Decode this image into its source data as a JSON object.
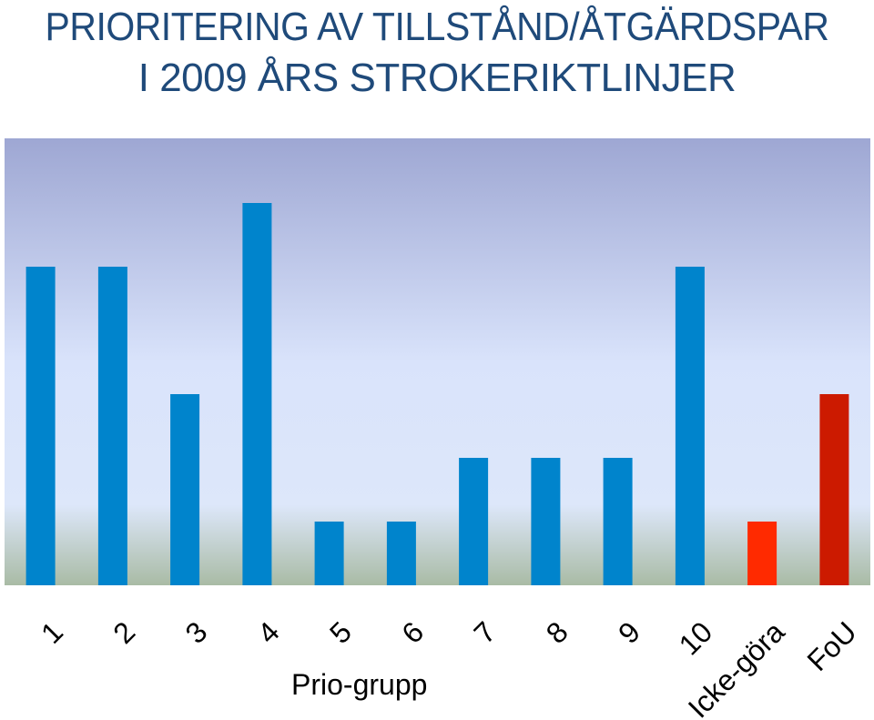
{
  "title_line1": "PRIORITERING AV TILLSTÅND/ÅTGÄRDSPAR",
  "title_line2": "I 2009 ÅRS STROKERIKTLINJER",
  "colors": {
    "title": "#1f4a7a",
    "bar_blue": "#0084cc",
    "bar_red_light": "#ff2a00",
    "bar_red_dark": "#cc1a00",
    "bg_top": "#9ea7d3",
    "bg_mid": "#d9e3fb",
    "bg_bottom": "#a9bba5"
  },
  "chart_data": {
    "type": "bar",
    "title": "PRIORITERING AV TILLSTÅND/ÅTGÄRDSPAR I 2009 ÅRS STROKERIKTLINJER",
    "xlabel": "Prio-grupp",
    "ylabel": "",
    "grid": false,
    "categories": [
      "1",
      "2",
      "3",
      "4",
      "5",
      "6",
      "7",
      "8",
      "9",
      "10",
      "Icke-göra",
      "FoU"
    ],
    "values": [
      5,
      5,
      3,
      6,
      1,
      1,
      2,
      2,
      2,
      5,
      1,
      3
    ],
    "bar_colors": [
      "#0084cc",
      "#0084cc",
      "#0084cc",
      "#0084cc",
      "#0084cc",
      "#0084cc",
      "#0084cc",
      "#0084cc",
      "#0084cc",
      "#0084cc",
      "#ff2a00",
      "#cc1a00"
    ],
    "ylim": [
      0,
      7
    ]
  }
}
